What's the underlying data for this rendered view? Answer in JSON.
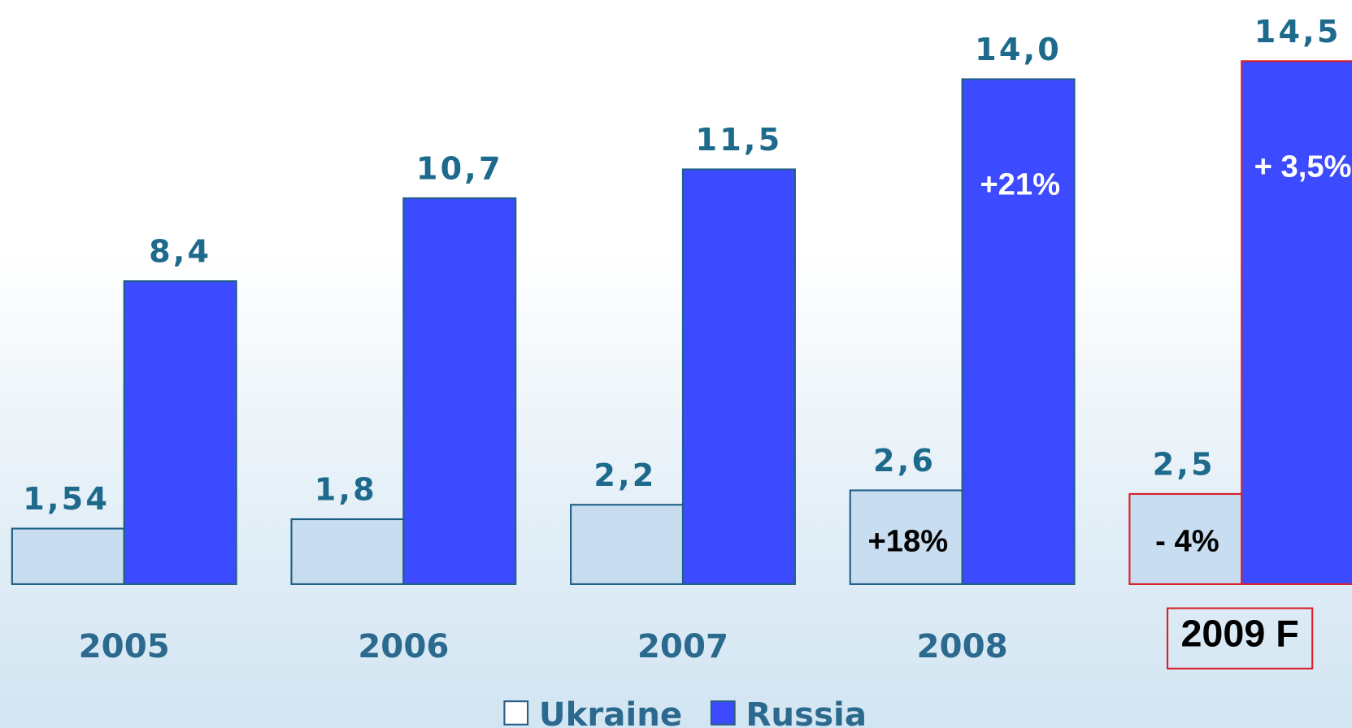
{
  "chart_data": {
    "type": "bar",
    "categories": [
      "2005",
      "2006",
      "2007",
      "2008",
      "2009 F"
    ],
    "series": [
      {
        "name": "Ukraine",
        "color": "#c8ddef",
        "values": [
          1.54,
          1.8,
          2.2,
          2.6,
          2.5
        ],
        "value_labels": [
          "1,54",
          "1,8",
          "2,2",
          "2,6",
          "2,5"
        ]
      },
      {
        "name": "Russia",
        "color": "#3c4bff",
        "values": [
          8.4,
          10.7,
          11.5,
          14.0,
          14.5
        ],
        "value_labels": [
          "8,4",
          "10,7",
          "11,5",
          "14,0",
          "14,5"
        ]
      }
    ],
    "annotations": [
      {
        "text": "+18%",
        "series": 0,
        "category": 3,
        "color": "#000000"
      },
      {
        "text": "+21%",
        "series": 1,
        "category": 3,
        "color": "#ffffff"
      },
      {
        "text": "- 4%",
        "series": 0,
        "category": 4,
        "color": "#000000"
      },
      {
        "text": "+ 3,5%",
        "series": 1,
        "category": 4,
        "color": "#ffffff"
      }
    ],
    "highlight": {
      "category": 4,
      "color": "#d8202c"
    },
    "legend": "bottom"
  }
}
